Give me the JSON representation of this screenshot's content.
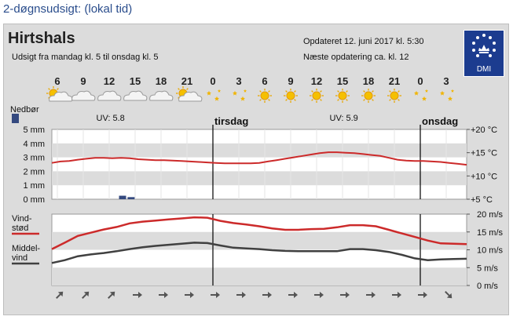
{
  "page": {
    "title": "2-døgnsudsigt: (lokal tid)"
  },
  "header": {
    "city": "Hirtshals",
    "range": "Udsigt fra mandag kl. 5 til onsdag kl. 5",
    "updated": "Opdateret 12. juni 2017 kl. 5:30",
    "next_update": "Næste opdatering ca. kl. 12",
    "logo_text": "DMI"
  },
  "colors": {
    "temperature": "#cc2a2a",
    "gust": "#cc2a2a",
    "wind": "#404040",
    "precip": "#34497f",
    "band": "#dcdcdc",
    "logo": "#1c3c8f"
  },
  "chart_data": {
    "type": "line",
    "hours": [
      "6",
      "9",
      "12",
      "15",
      "18",
      "21",
      "0",
      "3",
      "6",
      "9",
      "12",
      "15",
      "18",
      "21",
      "0",
      "3"
    ],
    "weather_icons": [
      "partly-cloudy",
      "cloudy",
      "cloudy",
      "cloudy",
      "cloudy",
      "partly-cloudy",
      "moon-stars",
      "moon-stars",
      "sun",
      "sun",
      "sun",
      "sun",
      "sun",
      "sun",
      "moon-stars",
      "moon-stars"
    ],
    "day_labels": [
      {
        "at": 6,
        "label": "tirsdag"
      },
      {
        "at": 14,
        "label": "onsdag"
      }
    ],
    "uv_labels": [
      {
        "at": 1.5,
        "label": "UV: 5.8"
      },
      {
        "at": 10.5,
        "label": "UV: 5.9"
      }
    ],
    "precipitation": {
      "label": "Nedbør",
      "ticks": [
        "0 mm",
        "1 mm",
        "2 mm",
        "3 mm",
        "4 mm",
        "5 mm"
      ],
      "ylim": [
        0,
        5
      ],
      "bars": [
        {
          "x": 2.5,
          "value": 0.25
        },
        {
          "x": 2.83,
          "value": 0.15
        }
      ]
    },
    "temperature": {
      "ticks": [
        "+5 °C",
        "+10 °C",
        "+15 °C",
        "+20 °C"
      ],
      "tick_values": [
        5,
        10,
        15,
        20
      ],
      "ylim": [
        5,
        20
      ],
      "x": [
        0,
        0.33,
        0.67,
        1,
        1.33,
        1.67,
        2,
        2.33,
        2.67,
        3,
        3.33,
        3.67,
        4,
        4.33,
        4.67,
        5,
        5.33,
        5.67,
        6,
        6.33,
        6.67,
        7,
        7.33,
        7.67,
        8,
        8.33,
        8.67,
        9,
        9.33,
        9.67,
        10,
        10.33,
        10.67,
        11,
        11.33,
        11.67,
        12,
        12.33,
        12.67,
        13,
        13.33,
        13.67,
        14,
        14.33,
        14.67,
        15,
        15.33,
        15.67,
        16
      ],
      "values": [
        12.8,
        13.1,
        13.2,
        13.5,
        13.7,
        13.9,
        13.9,
        13.8,
        13.9,
        13.8,
        13.6,
        13.5,
        13.4,
        13.4,
        13.3,
        13.2,
        13.1,
        13.0,
        12.9,
        12.8,
        12.7,
        12.7,
        12.7,
        12.7,
        12.8,
        13.1,
        13.4,
        13.7,
        14.0,
        14.3,
        14.6,
        14.9,
        15.1,
        15.1,
        15.0,
        14.9,
        14.7,
        14.5,
        14.3,
        13.9,
        13.5,
        13.3,
        13.2,
        13.2,
        13.1,
        13.0,
        12.8,
        12.6,
        12.4
      ]
    },
    "wind": {
      "ticks": [
        "0 m/s",
        "5 m/s",
        "10 m/s",
        "15 m/s",
        "20 m/s"
      ],
      "tick_values": [
        0,
        5,
        10,
        15,
        20
      ],
      "ylim": [
        0,
        20
      ],
      "series": [
        {
          "name": "Vind-stød",
          "label_lines": [
            "Vind-",
            "stød"
          ],
          "color": "#cc2a2a",
          "x": [
            0,
            0.5,
            1,
            1.5,
            2,
            2.5,
            3,
            3.5,
            4,
            4.5,
            5,
            5.5,
            6,
            6.5,
            7,
            7.5,
            8,
            8.5,
            9,
            9.5,
            10,
            10.5,
            11,
            11.5,
            12,
            12.5,
            13,
            13.5,
            14,
            14.5,
            15,
            15.5,
            16
          ],
          "values": [
            10.2,
            12.0,
            13.9,
            14.8,
            15.7,
            16.4,
            17.4,
            17.9,
            18.2,
            18.5,
            18.8,
            19.1,
            19.0,
            18.1,
            17.5,
            17.1,
            16.6,
            16.0,
            15.6,
            15.6,
            15.8,
            15.9,
            16.3,
            16.9,
            16.9,
            16.6,
            15.6,
            14.6,
            13.6,
            12.6,
            11.8,
            11.7,
            11.6
          ]
        },
        {
          "name": "Middel-vind",
          "label_lines": [
            "Middel-",
            "vind"
          ],
          "color": "#404040",
          "x": [
            0,
            0.5,
            1,
            1.5,
            2,
            2.5,
            3,
            3.5,
            4,
            4.5,
            5,
            5.5,
            6,
            6.5,
            7,
            7.5,
            8,
            8.5,
            9,
            9.5,
            10,
            10.5,
            11,
            11.5,
            12,
            12.5,
            13,
            13.5,
            14,
            14.5,
            15,
            15.5,
            16
          ],
          "values": [
            6.3,
            7.1,
            8.2,
            8.7,
            9.1,
            9.6,
            10.2,
            10.7,
            11.1,
            11.4,
            11.7,
            12.0,
            11.9,
            11.2,
            10.6,
            10.4,
            10.2,
            9.9,
            9.7,
            9.6,
            9.6,
            9.6,
            9.6,
            10.2,
            10.2,
            9.9,
            9.4,
            8.6,
            7.6,
            7.1,
            7.3,
            7.4,
            7.5
          ]
        }
      ]
    },
    "wind_directions": [
      225,
      225,
      225,
      270,
      270,
      270,
      270,
      270,
      270,
      270,
      270,
      270,
      270,
      270,
      270,
      315
    ]
  }
}
